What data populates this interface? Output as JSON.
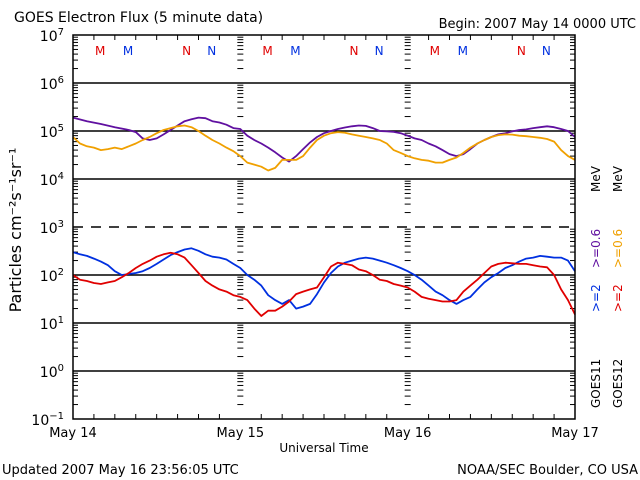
{
  "header": {
    "title": "GOES Electron Flux (5 minute data)",
    "begin": "Begin: 2007 May 14 0000 UTC"
  },
  "footer": {
    "updated": "Updated 2007 May 16 23:56:05 UTC",
    "credit": "NOAA/SEC Boulder, CO USA"
  },
  "chart_data": {
    "type": "line",
    "title": "GOES Electron Flux (5 minute data)",
    "xlabel": "Universal Time",
    "ylabel": "Particles cm⁻²s⁻¹sr⁻¹",
    "yscale": "log",
    "ylim": [
      0.1,
      10000000
    ],
    "xlim": [
      0,
      72
    ],
    "x_unit": "hours since 2007 May 14 0000 UTC",
    "grid": true,
    "x_ticks": [
      {
        "x": 0,
        "label": "May 14"
      },
      {
        "x": 24,
        "label": "May 15"
      },
      {
        "x": 48,
        "label": "May 16"
      },
      {
        "x": 72,
        "label": "May 17"
      }
    ],
    "y_ticks": [
      {
        "exp": "7",
        "value": 10000000
      },
      {
        "exp": "6",
        "value": 1000000
      },
      {
        "exp": "5",
        "value": 100000
      },
      {
        "exp": "4",
        "value": 10000
      },
      {
        "exp": "3",
        "value": 1000
      },
      {
        "exp": "2",
        "value": 100
      },
      {
        "exp": "1",
        "value": 10
      },
      {
        "exp": "0",
        "value": 1
      },
      {
        "exp": "−1",
        "value": 0.1
      }
    ],
    "dashed_threshold": 1000,
    "noon_midnight_markers": [
      {
        "x": 3.9,
        "label": "M",
        "color": "#e00000"
      },
      {
        "x": 7.9,
        "label": "M",
        "color": "#0030e0"
      },
      {
        "x": 16.3,
        "label": "N",
        "color": "#e00000"
      },
      {
        "x": 19.9,
        "label": "N",
        "color": "#0030e0"
      },
      {
        "x": 27.9,
        "label": "M",
        "color": "#e00000"
      },
      {
        "x": 31.9,
        "label": "M",
        "color": "#0030e0"
      },
      {
        "x": 40.3,
        "label": "N",
        "color": "#e00000"
      },
      {
        "x": 43.9,
        "label": "N",
        "color": "#0030e0"
      },
      {
        "x": 51.9,
        "label": "M",
        "color": "#e00000"
      },
      {
        "x": 55.9,
        "label": "M",
        "color": "#0030e0"
      },
      {
        "x": 64.3,
        "label": "N",
        "color": "#e00000"
      },
      {
        "x": 67.9,
        "label": "N",
        "color": "#0030e0"
      }
    ],
    "legend": {
      "placement": "right",
      "columns": [
        {
          "satellite": "GOES11",
          "hi": ">=2",
          "lo": ">=0.6",
          "unit": "MeV",
          "hi_color": "#0030e0",
          "lo_color": "#6010a0"
        },
        {
          "satellite": "GOES12",
          "hi": ">=2",
          "lo": ">=0.6",
          "unit": "MeV",
          "hi_color": "#e00000",
          "lo_color": "#f0a000"
        }
      ]
    },
    "series": [
      {
        "name": "GOES11 >=0.6 MeV",
        "color": "#6010a0",
        "x": [
          0,
          2,
          4,
          6,
          8,
          9,
          10,
          11,
          12,
          13,
          14,
          15,
          16,
          17,
          18,
          19,
          20,
          21,
          22,
          23,
          24,
          25,
          26,
          27,
          28,
          29,
          30,
          31,
          32,
          33,
          34,
          35,
          36,
          37,
          38,
          39,
          40,
          41,
          42,
          43,
          44,
          45,
          46,
          47,
          48,
          49,
          50,
          51,
          52,
          53,
          54,
          55,
          56,
          57,
          58,
          59,
          60,
          61,
          62,
          63,
          64,
          65,
          66,
          67,
          68,
          69,
          70,
          71,
          72
        ],
        "y": [
          190000,
          160000,
          140000,
          120000,
          105000,
          95000,
          70000,
          65000,
          70000,
          85000,
          105000,
          130000,
          160000,
          175000,
          190000,
          185000,
          160000,
          150000,
          135000,
          115000,
          110000,
          80000,
          65000,
          55000,
          45000,
          36000,
          28000,
          23000,
          30000,
          42000,
          58000,
          75000,
          90000,
          100000,
          110000,
          118000,
          125000,
          130000,
          128000,
          115000,
          100000,
          98000,
          96000,
          90000,
          80000,
          70000,
          65000,
          55000,
          48000,
          40000,
          33000,
          30000,
          33000,
          42000,
          55000,
          65000,
          75000,
          85000,
          90000,
          98000,
          105000,
          108000,
          115000,
          120000,
          125000,
          120000,
          110000,
          100000,
          75000
        ]
      },
      {
        "name": "GOES12 >=0.6 MeV",
        "color": "#f0a000",
        "x": [
          0,
          1,
          2,
          3,
          4,
          5,
          6,
          7,
          8,
          9,
          10,
          11,
          12,
          13,
          14,
          15,
          16,
          17,
          18,
          19,
          20,
          21,
          22,
          23,
          24,
          25,
          26,
          27,
          28,
          29,
          30,
          31,
          32,
          33,
          34,
          35,
          36,
          37,
          38,
          39,
          40,
          41,
          42,
          43,
          44,
          45,
          46,
          47,
          48,
          49,
          50,
          51,
          52,
          53,
          54,
          55,
          56,
          57,
          58,
          59,
          60,
          61,
          62,
          63,
          64,
          65,
          66,
          67,
          68,
          69,
          70,
          71,
          72
        ],
        "y": [
          75000,
          55000,
          48000,
          45000,
          40000,
          42000,
          45000,
          42000,
          48000,
          55000,
          65000,
          75000,
          90000,
          105000,
          115000,
          125000,
          130000,
          120000,
          100000,
          80000,
          65000,
          55000,
          45000,
          38000,
          30000,
          22000,
          20000,
          18000,
          15000,
          17000,
          25000,
          25000,
          25000,
          30000,
          45000,
          65000,
          80000,
          90000,
          95000,
          92000,
          85000,
          80000,
          75000,
          70000,
          65000,
          55000,
          40000,
          35000,
          30000,
          27000,
          25000,
          24000,
          22000,
          22000,
          25000,
          28000,
          35000,
          45000,
          55000,
          65000,
          75000,
          82000,
          85000,
          84000,
          80000,
          78000,
          75000,
          72000,
          68000,
          60000,
          40000,
          30000,
          25000
        ]
      },
      {
        "name": "GOES11 >=2 MeV",
        "color": "#0030e0",
        "x": [
          0,
          1,
          2,
          3,
          4,
          5,
          6,
          7,
          8,
          9,
          10,
          11,
          12,
          13,
          14,
          15,
          16,
          17,
          18,
          19,
          20,
          21,
          22,
          23,
          24,
          25,
          26,
          27,
          28,
          29,
          30,
          31,
          32,
          33,
          34,
          35,
          36,
          37,
          38,
          39,
          40,
          41,
          42,
          43,
          44,
          45,
          46,
          47,
          48,
          49,
          50,
          51,
          52,
          53,
          54,
          55,
          56,
          57,
          58,
          59,
          60,
          61,
          62,
          63,
          64,
          65,
          66,
          67,
          68,
          69,
          70,
          71,
          72
        ],
        "y": [
          300,
          270,
          250,
          220,
          190,
          160,
          120,
          100,
          105,
          110,
          120,
          140,
          170,
          210,
          260,
          300,
          340,
          360,
          320,
          270,
          240,
          230,
          210,
          170,
          140,
          100,
          80,
          60,
          38,
          30,
          25,
          30,
          20,
          22,
          25,
          40,
          70,
          110,
          150,
          180,
          200,
          220,
          230,
          220,
          200,
          180,
          160,
          140,
          120,
          100,
          80,
          60,
          45,
          38,
          30,
          25,
          30,
          35,
          50,
          70,
          90,
          110,
          140,
          160,
          190,
          220,
          230,
          250,
          240,
          230,
          230,
          200,
          120
        ]
      },
      {
        "name": "GOES12 >=2 MeV",
        "color": "#e00000",
        "x": [
          0,
          1,
          2,
          3,
          4,
          5,
          6,
          7,
          8,
          9,
          10,
          11,
          12,
          13,
          14,
          15,
          16,
          17,
          18,
          19,
          20,
          21,
          22,
          23,
          24,
          25,
          26,
          27,
          28,
          29,
          30,
          31,
          32,
          33,
          34,
          35,
          36,
          37,
          38,
          39,
          40,
          41,
          42,
          43,
          44,
          45,
          46,
          47,
          48,
          49,
          50,
          51,
          52,
          53,
          54,
          55,
          56,
          57,
          58,
          59,
          60,
          61,
          62,
          63,
          64,
          65,
          66,
          67,
          68,
          69,
          70,
          71,
          72
        ],
        "y": [
          100,
          80,
          75,
          68,
          65,
          70,
          75,
          90,
          110,
          140,
          170,
          200,
          240,
          270,
          290,
          270,
          230,
          160,
          110,
          75,
          60,
          50,
          45,
          38,
          35,
          30,
          20,
          14,
          18,
          18,
          22,
          28,
          40,
          45,
          50,
          55,
          90,
          150,
          180,
          170,
          160,
          130,
          120,
          100,
          80,
          75,
          65,
          60,
          55,
          45,
          35,
          32,
          30,
          28,
          28,
          30,
          45,
          60,
          80,
          110,
          150,
          170,
          180,
          175,
          170,
          170,
          160,
          150,
          145,
          100,
          50,
          30,
          15
        ]
      }
    ]
  }
}
